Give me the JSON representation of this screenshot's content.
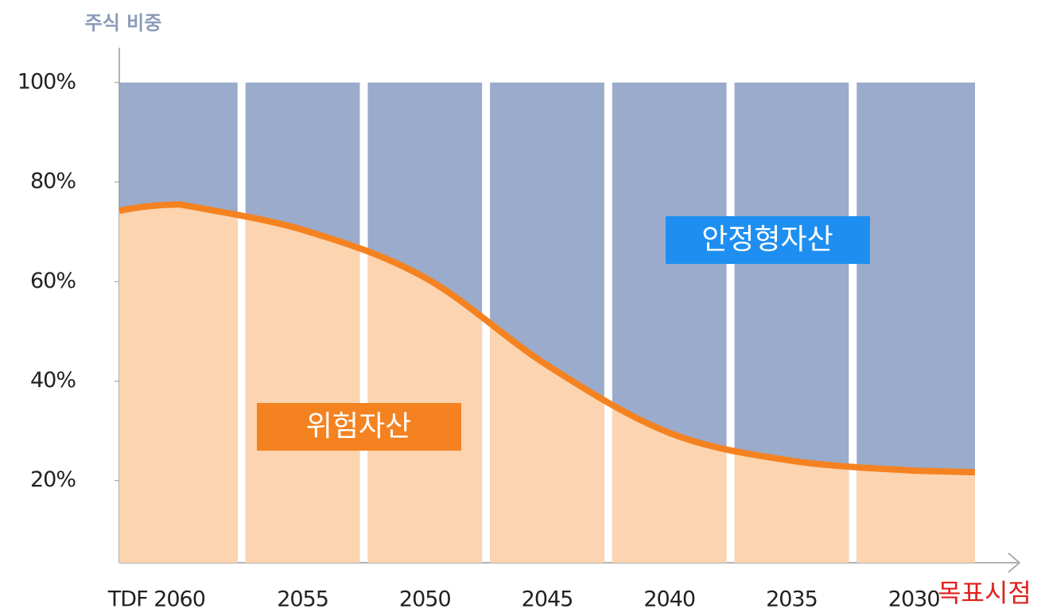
{
  "chart_data": {
    "type": "area",
    "y_axis_label": "주식 비중",
    "x_axis_label": "목표시점",
    "categories": [
      "TDF 2060",
      "2055",
      "2050",
      "2045",
      "2040",
      "2035",
      "2030"
    ],
    "series": [
      {
        "name": "위험자산",
        "color": "#f58220",
        "fill": "#fcd4b0",
        "values": [
          75.5,
          70.4,
          60.8,
          43.2,
          29.6,
          24,
          22
        ]
      }
    ],
    "background_series_name": "안정형자산",
    "background_color": "#9aabcb",
    "ylim": [
      3.5,
      107
    ],
    "yticks": [
      {
        "value": 20,
        "label": "20%"
      },
      {
        "value": 40,
        "label": "40%"
      },
      {
        "value": 60,
        "label": "60%"
      },
      {
        "value": 80,
        "label": "80%"
      },
      {
        "value": 100,
        "label": "100%"
      }
    ]
  }
}
